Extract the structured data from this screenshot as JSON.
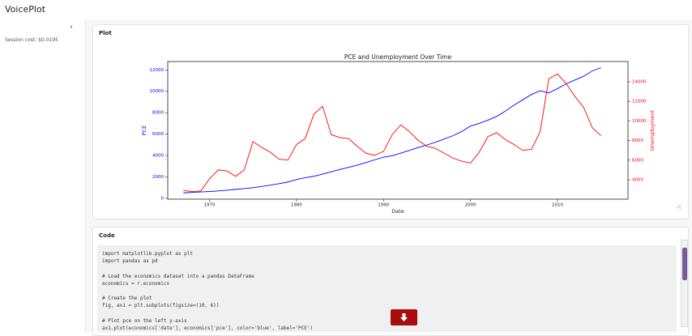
{
  "header": {
    "title": "VoicePlot"
  },
  "sidebar": {
    "session_cost": "Session cost: $0.0195"
  },
  "plot_panel": {
    "title": "Plot"
  },
  "chart_data": {
    "type": "line",
    "title": "PCE and Unemployment Over Time",
    "x_label": "Date",
    "y_label": "PCE",
    "y2_label": "Unemployment",
    "x": [
      1967,
      1968,
      1969,
      1970,
      1971,
      1972,
      1973,
      1974,
      1975,
      1976,
      1977,
      1978,
      1979,
      1980,
      1981,
      1982,
      1983,
      1984,
      1985,
      1986,
      1987,
      1988,
      1989,
      1990,
      1991,
      1992,
      1993,
      1994,
      1995,
      1996,
      1997,
      1998,
      1999,
      2000,
      2001,
      2002,
      2003,
      2004,
      2005,
      2006,
      2007,
      2008,
      2009,
      2010,
      2011,
      2012,
      2013,
      2014,
      2015
    ],
    "series": [
      {
        "name": "PCE",
        "color": "#0000ff",
        "axis": "y",
        "values": [
          510,
          560,
          600,
          640,
          690,
          760,
          840,
          910,
          1000,
          1110,
          1230,
          1370,
          1520,
          1750,
          1930,
          2060,
          2260,
          2480,
          2700,
          2900,
          3100,
          3350,
          3600,
          3850,
          3980,
          4230,
          4480,
          4750,
          4980,
          5250,
          5550,
          5850,
          6250,
          6750,
          7000,
          7300,
          7650,
          8150,
          8700,
          9200,
          9700,
          10050,
          9850,
          10250,
          10700,
          11050,
          11400,
          11900,
          12200
        ]
      },
      {
        "name": "Unemployment",
        "color": "#ff0000",
        "axis": "y2",
        "values": [
          2900,
          2800,
          2850,
          4100,
          5000,
          4900,
          4350,
          5000,
          7900,
          7300,
          6800,
          6100,
          6000,
          7600,
          8200,
          10700,
          11500,
          8600,
          8300,
          8200,
          7400,
          6700,
          6500,
          6900,
          8600,
          9600,
          8900,
          8000,
          7400,
          7200,
          6700,
          6200,
          5900,
          5700,
          6800,
          8400,
          8800,
          8100,
          7600,
          7000,
          7100,
          8900,
          14300,
          14800,
          13800,
          12500,
          11400,
          9300,
          8500
        ]
      }
    ],
    "xlim": [
      1965.2,
      2018.1
    ],
    "xticks": [
      1970,
      1980,
      1990,
      2000,
      2010
    ],
    "ylim": [
      -77,
      12778
    ],
    "yticks": [
      0,
      2000,
      4000,
      6000,
      8000,
      10000,
      12000
    ],
    "y2lim": [
      2017,
      16066
    ],
    "y2ticks": [
      4000,
      6000,
      8000,
      10000,
      12000,
      14000
    ]
  },
  "code_panel": {
    "title": "Code",
    "code": "import matplotlib.pyplot as plt\nimport pandas as pd\n\n# Load the economics dataset into a pandas DataFrame\neconomics = r.economics\n\n# Create the plot\nfig, ax1 = plt.subplots(figsize=(10, 6))\n\n# Plot pce on the left y-axis\nax1.plot(economics['date'], economics['pce'], color='blue', label='PCE')"
  }
}
